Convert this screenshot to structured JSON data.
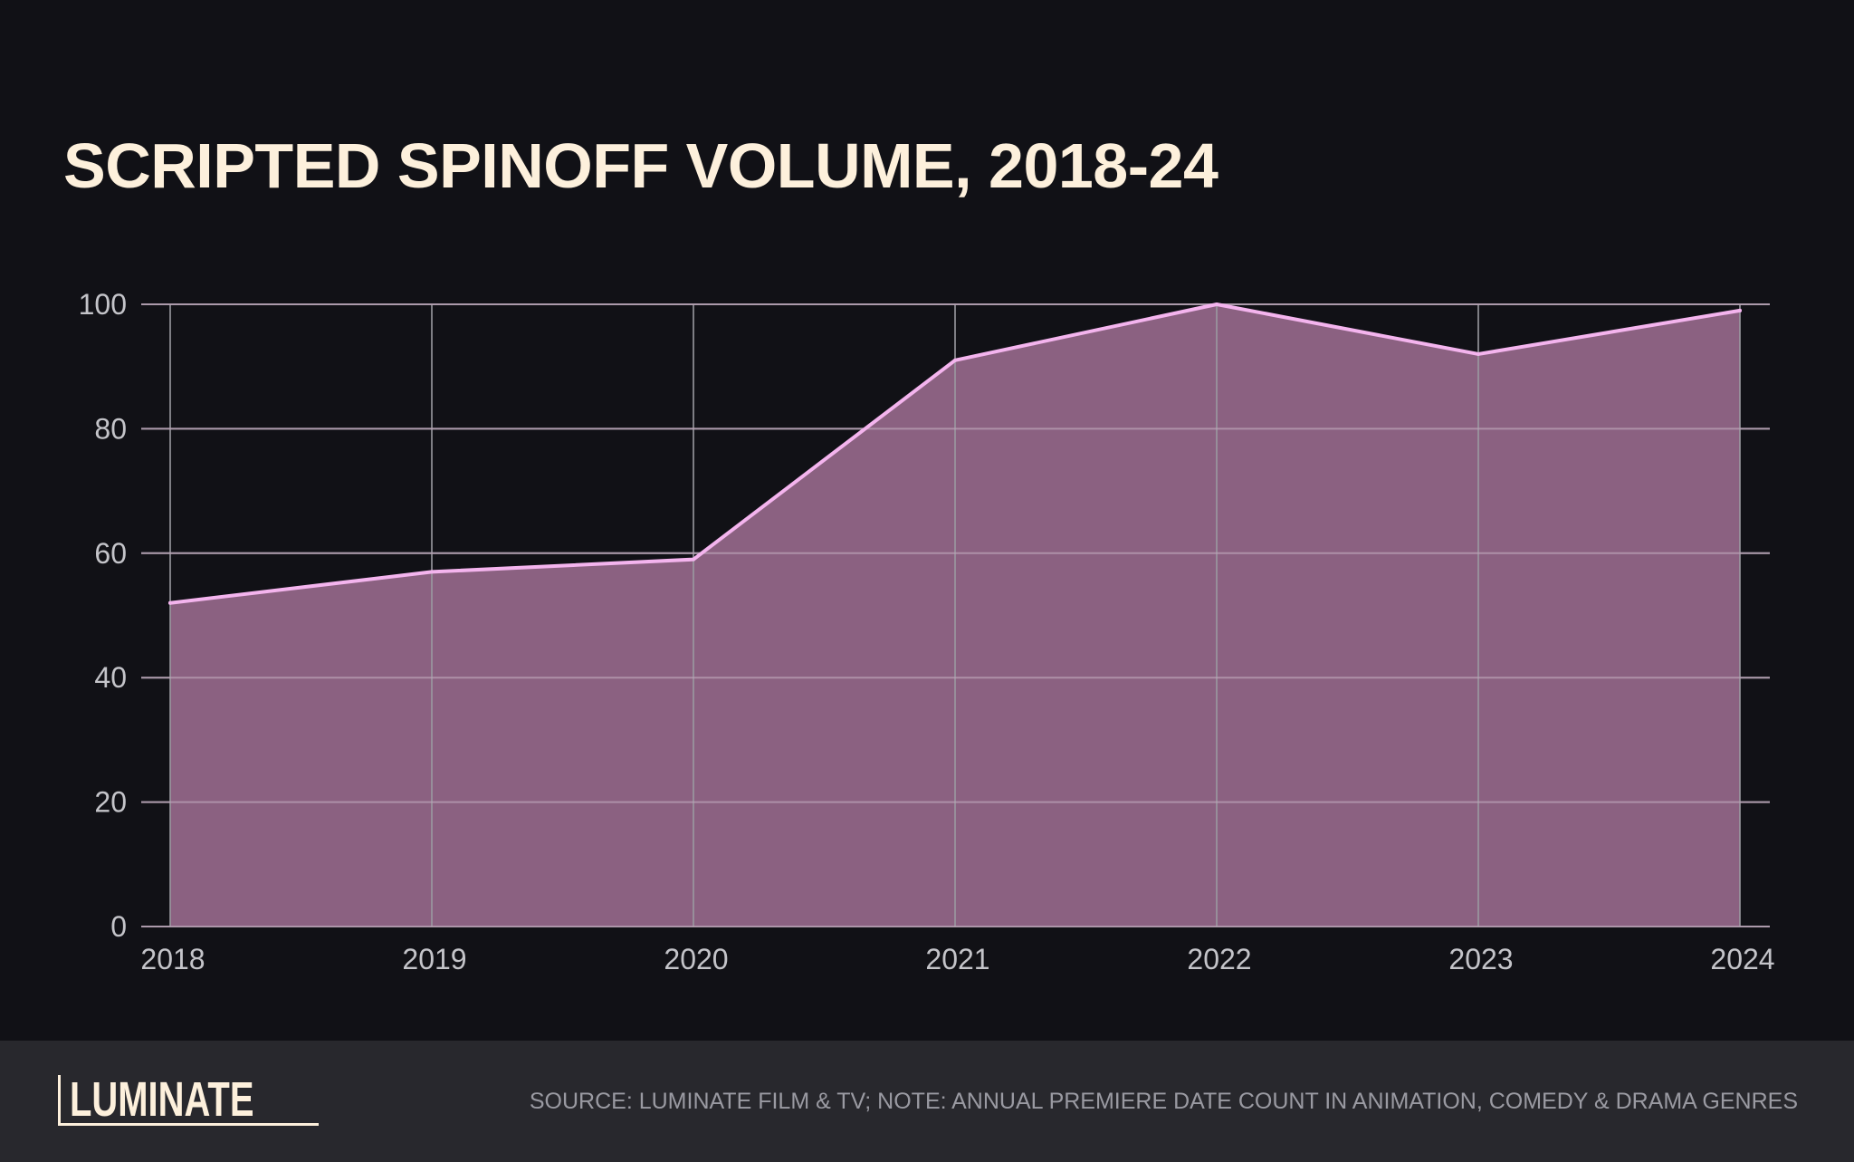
{
  "title": "SCRIPTED SPINOFF VOLUME, 2018-24",
  "footer": {
    "logo_text": "LUMINATE",
    "source_note": "SOURCE: LUMINATE FILM & TV; NOTE: ANNUAL PREMIERE DATE COUNT IN ANIMATION, COMEDY & DRAMA GENRES"
  },
  "colors": {
    "background": "#111116",
    "footer_background": "#28282d",
    "title": "#fdf0dc",
    "area_fill": "#8b6181",
    "line": "#f4b4ee",
    "grid": "#9a9aa0",
    "tick_text": "#c4c4c9",
    "source_text": "#9a9aa2"
  },
  "chart_data": {
    "type": "area",
    "title": "SCRIPTED SPINOFF VOLUME, 2018-24",
    "xlabel": "",
    "ylabel": "",
    "x": [
      "2018",
      "2019",
      "2020",
      "2021",
      "2022",
      "2023",
      "2024"
    ],
    "series": [
      {
        "values": [
          52,
          57,
          59,
          91,
          100,
          92,
          99
        ]
      }
    ],
    "ylim": [
      0,
      100
    ],
    "yticks": [
      0,
      20,
      40,
      60,
      80,
      100
    ],
    "grid": true,
    "legend": "none"
  }
}
